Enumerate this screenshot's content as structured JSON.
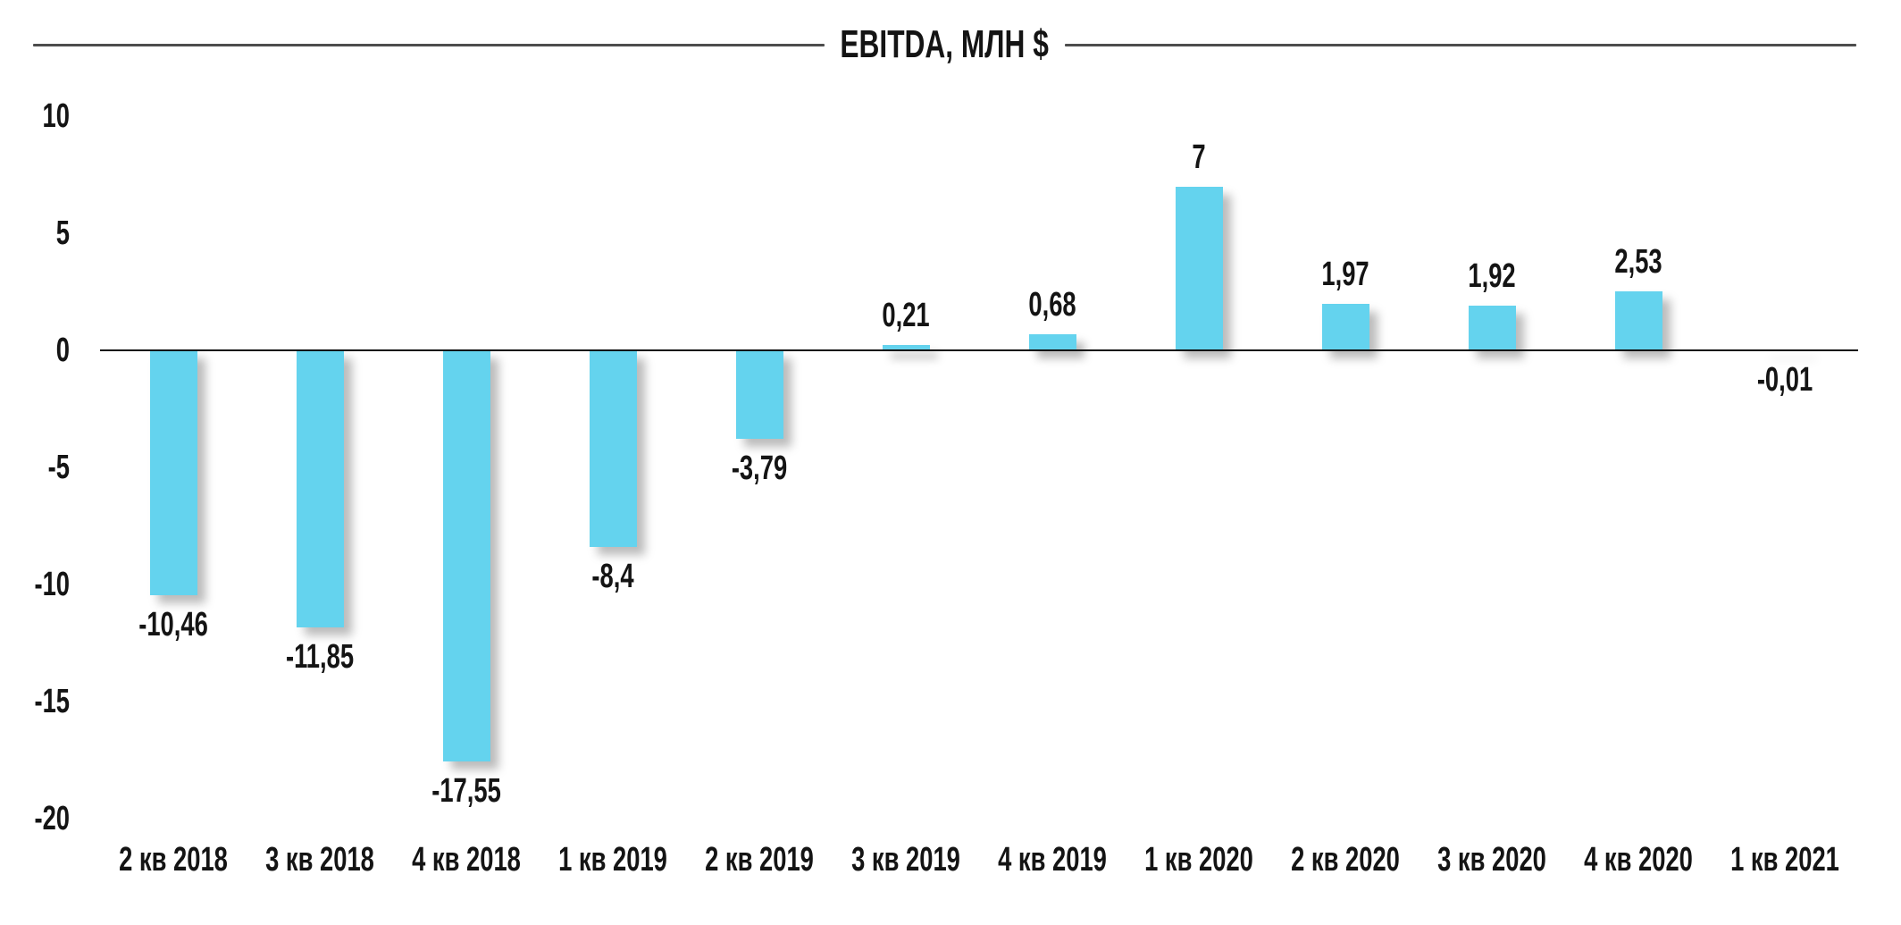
{
  "chart_data": {
    "type": "bar",
    "title": "EBITDA, МЛН $",
    "categories": [
      "2 кв 2018",
      "3 кв 2018",
      "4 кв 2018",
      "1 кв 2019",
      "2 кв 2019",
      "3 кв 2019",
      "4 кв 2019",
      "1 кв 2020",
      "2 кв 2020",
      "3 кв 2020",
      "4 кв 2020",
      "1 кв 2021"
    ],
    "values": [
      -10.46,
      -11.85,
      -17.55,
      -8.4,
      -3.79,
      0.21,
      0.68,
      7,
      1.97,
      1.92,
      2.53,
      -0.01
    ],
    "value_labels": [
      "-10,46",
      "-11,85",
      "-17,55",
      "-8,4",
      "-3,79",
      "0,21",
      "0,68",
      "7",
      "1,97",
      "1,92",
      "2,53",
      "-0,01"
    ],
    "xlabel": "",
    "ylabel": "",
    "ylim": [
      -20,
      10
    ],
    "yticks": [
      10,
      5,
      0,
      -5,
      -10,
      -15,
      -20
    ],
    "grid": false,
    "legend": "none",
    "bar_color": "#64d3ee",
    "axis_color": "#111111",
    "title_rule_color": "#4d4d4d",
    "text_color": "#141414"
  }
}
